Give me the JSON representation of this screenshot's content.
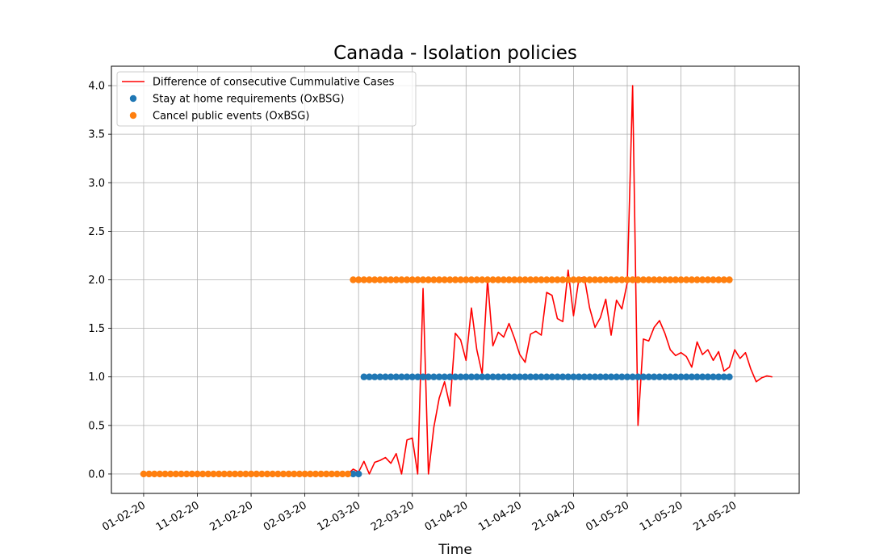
{
  "chart_data": {
    "type": "line",
    "title": "Canada - Isolation policies",
    "xlabel": "Time",
    "ylabel": "",
    "x_ticks": [
      "01-02-20",
      "11-02-20",
      "21-02-20",
      "02-03-20",
      "12-03-20",
      "22-03-20",
      "01-04-20",
      "11-04-20",
      "21-04-20",
      "01-05-20",
      "11-05-20",
      "21-05-20"
    ],
    "y_ticks": [
      0.0,
      0.5,
      1.0,
      1.5,
      2.0,
      2.5,
      3.0,
      3.5,
      4.0
    ],
    "y_tick_labels": [
      "0.0",
      "0.5",
      "1.0",
      "1.5",
      "2.0",
      "2.5",
      "3.0",
      "3.5",
      "4.0"
    ],
    "xlim": [
      "2020-01-26",
      "2020-06-02"
    ],
    "ylim": [
      -0.2,
      4.2
    ],
    "grid": true,
    "legend_position": "upper-left",
    "series": [
      {
        "name": "Difference of consecutive Cummulative Cases",
        "kind": "line",
        "color": "#ff0000",
        "start_date": "2020-03-10",
        "y": [
          0.0,
          0.05,
          0.02,
          0.13,
          0.0,
          0.12,
          0.14,
          0.17,
          0.11,
          0.21,
          0.0,
          0.35,
          0.37,
          0.0,
          1.91,
          0.0,
          0.48,
          0.78,
          0.95,
          0.7,
          1.45,
          1.38,
          1.17,
          1.71,
          1.28,
          1.03,
          2.0,
          1.32,
          1.46,
          1.41,
          1.55,
          1.4,
          1.23,
          1.15,
          1.44,
          1.47,
          1.43,
          1.87,
          1.84,
          1.6,
          1.57,
          2.1,
          1.63,
          2.01,
          2.03,
          1.71,
          1.51,
          1.61,
          1.8,
          1.43,
          1.79,
          1.7,
          1.97,
          4.0,
          0.5,
          1.39,
          1.37,
          1.51,
          1.58,
          1.45,
          1.28,
          1.22,
          1.25,
          1.21,
          1.1,
          1.36,
          1.23,
          1.28,
          1.17,
          1.26,
          1.06,
          1.1,
          1.28,
          1.19,
          1.25,
          1.08,
          0.95,
          0.99,
          1.01,
          1.0
        ]
      },
      {
        "name": "Stay at home requirements (OxBSG)",
        "kind": "scatter",
        "color": "#1f77b4",
        "segments": [
          {
            "start": "2020-03-11",
            "end": "2020-03-12",
            "value": 0
          },
          {
            "start": "2020-03-13",
            "end": "2020-05-20",
            "value": 1
          }
        ]
      },
      {
        "name": "Cancel public events (OxBSG)",
        "kind": "scatter",
        "color": "#ff7f0e",
        "segments": [
          {
            "start": "2020-02-01",
            "end": "2020-03-10",
            "value": 0
          },
          {
            "start": "2020-03-11",
            "end": "2020-05-20",
            "value": 2
          }
        ]
      }
    ]
  }
}
